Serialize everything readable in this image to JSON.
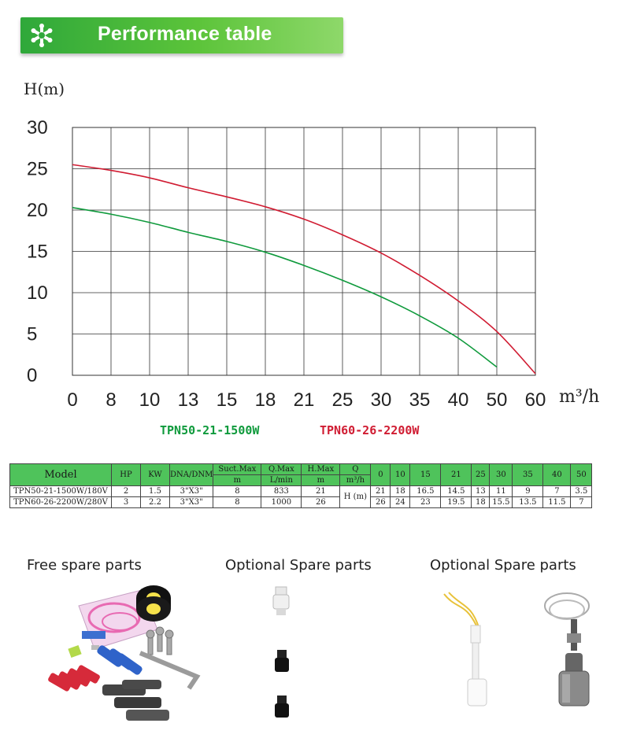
{
  "banner": {
    "title": "Performance table",
    "icon": "flower-logo-icon",
    "color": "#2fa83a"
  },
  "chart_data": {
    "type": "line",
    "ylabel": "H(m)",
    "xlabel": "m³/h",
    "x_ticks": [
      "0",
      "8",
      "10",
      "13",
      "15",
      "18",
      "21",
      "25",
      "30",
      "35",
      "40",
      "50",
      "60"
    ],
    "y_ticks": [
      "0",
      "5",
      "10",
      "15",
      "20",
      "25",
      "30"
    ],
    "ylim": [
      0,
      30
    ],
    "grid": true,
    "legend_position": "bottom",
    "series": [
      {
        "name": "TPN50-21-1500W",
        "color": "#0f9a3c",
        "x_index": [
          0,
          1,
          2,
          3,
          4,
          5,
          6,
          7,
          8,
          9,
          10,
          11
        ],
        "values": [
          20.3,
          19.5,
          18.5,
          17.3,
          16.2,
          14.9,
          13.3,
          11.5,
          9.5,
          7.2,
          4.5,
          1.0
        ]
      },
      {
        "name": "TPN60-26-2200W",
        "color": "#d01c32",
        "x_index": [
          0,
          1,
          2,
          3,
          4,
          5,
          6,
          7,
          8,
          9,
          10,
          11,
          12
        ],
        "values": [
          25.5,
          24.8,
          23.9,
          22.7,
          21.6,
          20.4,
          18.9,
          17.0,
          14.8,
          12.1,
          9.0,
          5.3,
          0.2
        ]
      }
    ]
  },
  "legend": {
    "series1": "TPN50-21-1500W",
    "series2": "TPN60-26-2200W"
  },
  "spec_table": {
    "header_color": "#4fc35b",
    "h_model": "Model",
    "h_hp": "HP",
    "h_kw": "KW",
    "h_dna": "DNA/DNM",
    "h_suct": "Suct.Max",
    "h_suct_unit": "m",
    "h_qmax": "Q.Max",
    "h_qmax_unit": "L/min",
    "h_hmax": "H.Max",
    "h_hmax_unit": "m",
    "h_q": "Q",
    "h_q_unit": "m³/h",
    "h_unit": "H (m)",
    "flow_points": [
      "0",
      "10",
      "15",
      "21",
      "25",
      "30",
      "35",
      "40",
      "50"
    ],
    "rows": [
      {
        "model": "TPN50-21-1500W/180V",
        "hp": "2",
        "kw": "1.5",
        "dna": "3\"X3\"",
        "suct": "8",
        "qmax": "833",
        "hmax": "21",
        "heads": [
          "21",
          "18",
          "16.5",
          "14.5",
          "13",
          "11",
          "9",
          "7",
          "3.5"
        ]
      },
      {
        "model": "TPN60-26-2200W/280V",
        "hp": "3",
        "kw": "2.2",
        "dna": "3\"X3\"",
        "suct": "8",
        "qmax": "1000",
        "hmax": "26",
        "heads": [
          "26",
          "24",
          "23",
          "19.5",
          "18",
          "15.5",
          "13.5",
          "11.5",
          "7"
        ]
      }
    ]
  },
  "parts": {
    "free_label": "Free spare parts",
    "optional1_label": "Optional Spare parts",
    "optional2_label": "Optional Spare parts"
  }
}
